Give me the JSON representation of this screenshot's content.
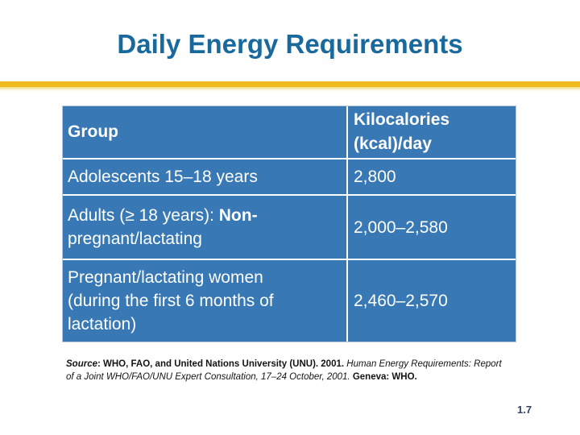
{
  "slide": {
    "title": "Daily Energy Requirements",
    "page_number": "1.7",
    "background_color": "#FFFFFF",
    "title_color": "#19699C",
    "accent_rule_color": "#EFBA1E"
  },
  "table": {
    "cell_background_color": "#3878B4",
    "text_color": "#FFFFFF",
    "divider_color": "#FFFFFF",
    "header": {
      "group": "Group",
      "kcal": "Kilocalories (kcal)/day"
    },
    "rows": [
      {
        "group": "Adolescents 15–18 years",
        "kcal": "2,800"
      },
      {
        "group_prefix": "Adults (≥ 18 years): ",
        "group_emphasis": "Non-",
        "group_rest": "pregnant/lactating",
        "kcal": "2,000–2,580"
      },
      {
        "group": "Pregnant/lactating women (during the first 6 months of lactation)",
        "kcal": "2,460–2,570"
      }
    ]
  },
  "source_note": {
    "label": "Source",
    "citation_bold": ": WHO, FAO, and United Nations University (UNU). 2001. ",
    "work_italic": "Human Energy Requirements: Report of a Joint WHO/FAO/UNU Expert Consultation, 17–24 October, 2001. ",
    "publisher_bold": "Geneva: WHO."
  }
}
